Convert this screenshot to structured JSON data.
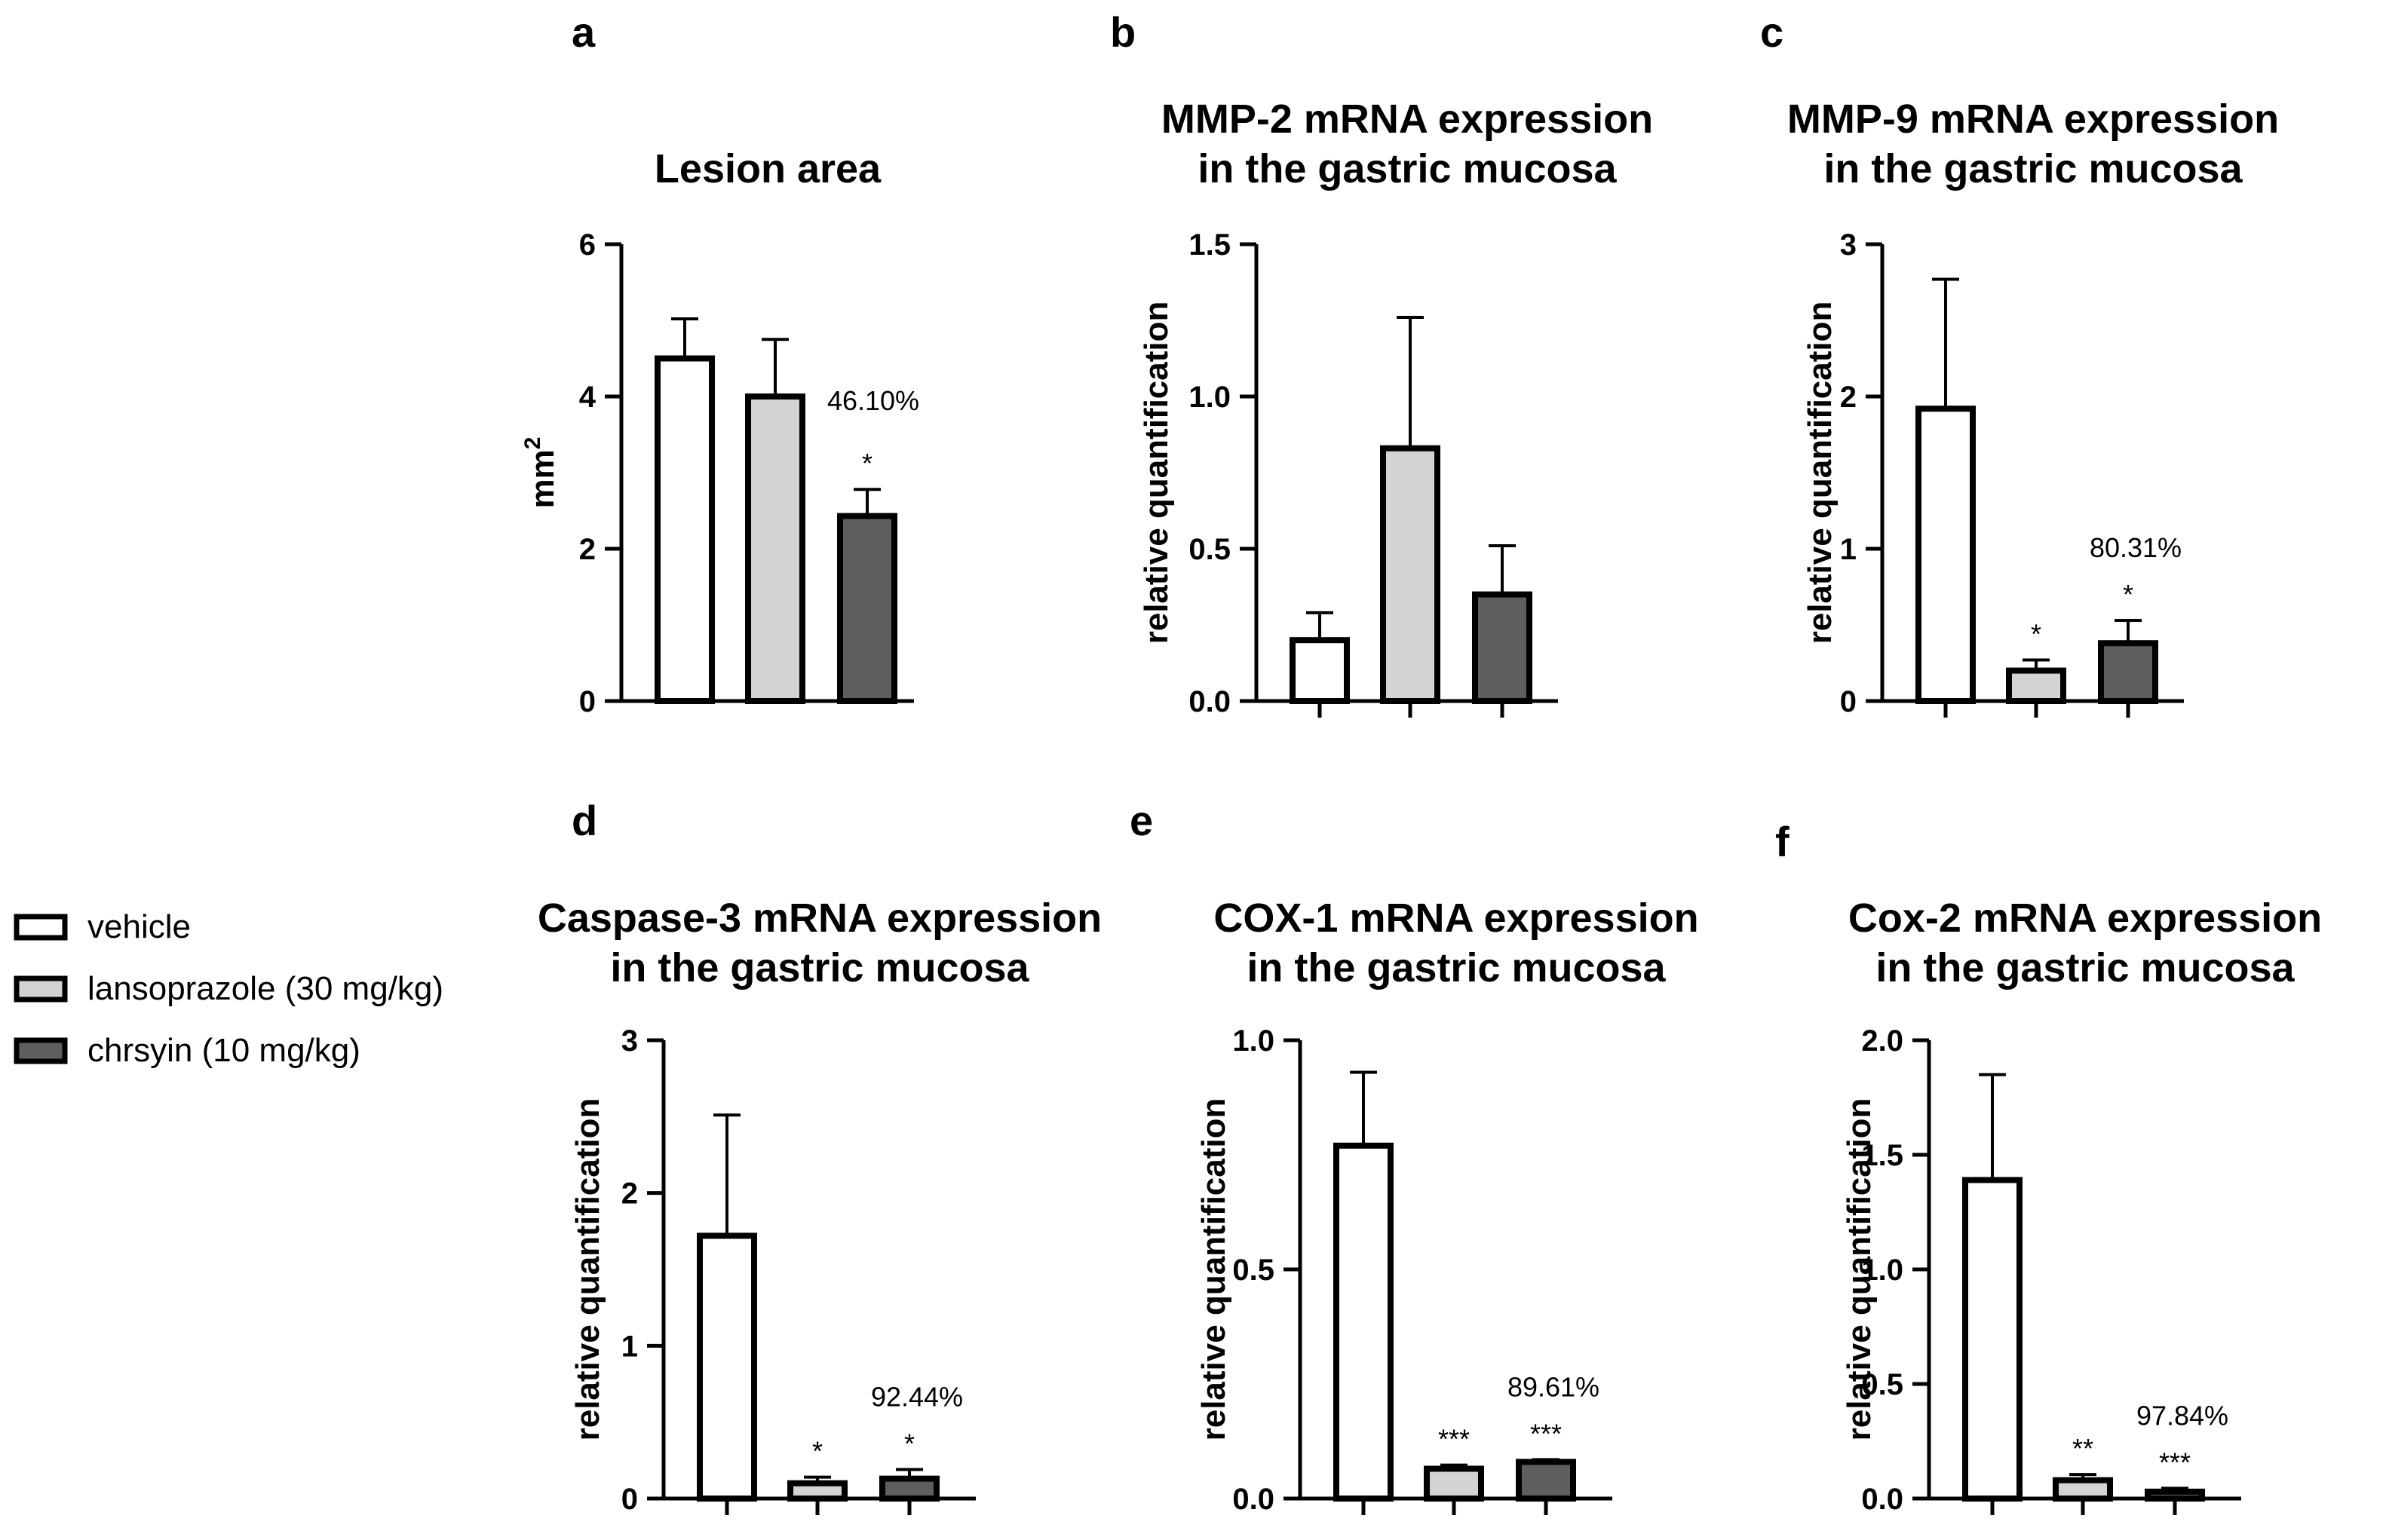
{
  "legend": [
    {
      "label": "vehicle",
      "color": "#ffffff"
    },
    {
      "label": "lansoprazole (30 mg/kg)",
      "color": "#d3d3d3"
    },
    {
      "label": "chrsyin (10 mg/kg)",
      "color": "#5e5e5e"
    }
  ],
  "chart_data": [
    {
      "type": "bar",
      "letter": "a",
      "title": [
        "Lesion area"
      ],
      "ylabel": "mm2",
      "ylabel_main": "mm",
      "ylabel_sup": "2",
      "ylim": [
        0,
        6
      ],
      "yticks": [
        0,
        2,
        4,
        6
      ],
      "tick_labels": [
        "0",
        "2",
        "4",
        "6"
      ],
      "categories": [
        "vehicle",
        "lansoprazole (30 mg/kg)",
        "chrsyin (10 mg/kg)"
      ],
      "values": [
        4.5,
        4.0,
        2.43
      ],
      "errors": [
        0.52,
        0.75,
        0.35
      ],
      "annotations": [
        "",
        "",
        "*"
      ],
      "percent": "46.10%",
      "percent_bar": 2,
      "show_xticks": false
    },
    {
      "type": "bar",
      "letter": "b",
      "title": [
        "MMP-2 mRNA expression",
        "in the gastric mucosa"
      ],
      "ylabel": "relative quantification",
      "ylim": [
        0,
        1.5
      ],
      "yticks": [
        0,
        0.5,
        1.0,
        1.5
      ],
      "tick_labels": [
        "0.0",
        "0.5",
        "1.0",
        "1.5"
      ],
      "categories": [
        "vehicle",
        "lansoprazole (30 mg/kg)",
        "chrsyin (10 mg/kg)"
      ],
      "values": [
        0.2,
        0.83,
        0.35
      ],
      "errors": [
        0.09,
        0.43,
        0.16
      ],
      "annotations": [
        "",
        "",
        ""
      ],
      "percent": "",
      "percent_bar": 2,
      "show_xticks": true
    },
    {
      "type": "bar",
      "letter": "c",
      "title": [
        "MMP-9 mRNA expression",
        "in the gastric mucosa"
      ],
      "ylabel": "relative quantification",
      "ylim": [
        0,
        3
      ],
      "yticks": [
        0,
        1,
        2,
        3
      ],
      "tick_labels": [
        "0",
        "1",
        "2",
        "3"
      ],
      "categories": [
        "vehicle",
        "lansoprazole (30 mg/kg)",
        "chrsyin (10 mg/kg)"
      ],
      "values": [
        1.92,
        0.2,
        0.38
      ],
      "errors": [
        0.85,
        0.07,
        0.15
      ],
      "annotations": [
        "",
        "*",
        "*"
      ],
      "percent": "80.31%",
      "percent_bar": 2,
      "show_xticks": true
    },
    {
      "type": "bar",
      "letter": "d",
      "title": [
        "Caspase-3 mRNA expression",
        "in the gastric mucosa"
      ],
      "ylabel": "relative quantification",
      "ylim": [
        0,
        3
      ],
      "yticks": [
        0,
        1,
        2,
        3
      ],
      "tick_labels": [
        "0",
        "1",
        "2",
        "3"
      ],
      "categories": [
        "vehicle",
        "lansoprazole (30 mg/kg)",
        "chrsyin (10 mg/kg)"
      ],
      "values": [
        1.72,
        0.1,
        0.13
      ],
      "errors": [
        0.79,
        0.04,
        0.06
      ],
      "annotations": [
        "",
        "*",
        "*"
      ],
      "percent": "92.44%",
      "percent_bar": 2,
      "show_xticks": true
    },
    {
      "type": "bar",
      "letter": "e",
      "title": [
        "COX-1 mRNA expression",
        "in the gastric mucosa"
      ],
      "ylabel": "relative quantification",
      "ylim": [
        0,
        1.0
      ],
      "yticks": [
        0,
        0.5,
        1.0
      ],
      "tick_labels": [
        "0.0",
        "0.5",
        "1.0"
      ],
      "categories": [
        "vehicle",
        "lansoprazole (30 mg/kg)",
        "chrsyin (10 mg/kg)"
      ],
      "values": [
        0.77,
        0.065,
        0.08
      ],
      "errors": [
        0.16,
        0.008,
        0.005
      ],
      "annotations": [
        "",
        "***",
        "***"
      ],
      "percent": "89.61%",
      "percent_bar": 2,
      "show_xticks": true
    },
    {
      "type": "bar",
      "letter": "f",
      "title": [
        "Cox-2 mRNA expression",
        "in the gastric mucosa"
      ],
      "ylabel": "relative quantification",
      "ylim": [
        0,
        2.0
      ],
      "yticks": [
        0,
        0.5,
        1.0,
        1.5,
        2.0
      ],
      "tick_labels": [
        "0.0",
        "0.5",
        "1.0",
        "1.5",
        "2.0"
      ],
      "categories": [
        "vehicle",
        "lansoprazole (30 mg/kg)",
        "chrsyin (10 mg/kg)"
      ],
      "values": [
        1.39,
        0.08,
        0.03
      ],
      "errors": [
        0.46,
        0.025,
        0.015
      ],
      "annotations": [
        "",
        "**",
        "***"
      ],
      "percent": "97.84%",
      "percent_bar": 2,
      "show_xticks": true
    }
  ]
}
